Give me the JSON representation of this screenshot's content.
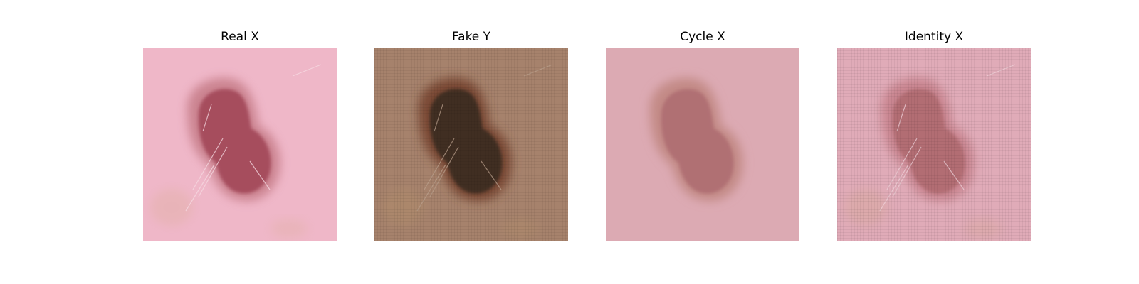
{
  "panels": [
    {
      "title": "Real X",
      "image": {
        "background": "#efb7c8",
        "lesion_outer": "#c57a86",
        "lesion_core": "#9a3a4c",
        "hair": "#f6d9e2",
        "texture": "smooth",
        "hair_strands": true,
        "tint_patches": true,
        "lesion_opacity": 0.85
      }
    },
    {
      "title": "Fake Y",
      "image": {
        "background": "#a6826c",
        "lesion_outer": "#7a4a35",
        "lesion_core": "#3f2d24",
        "hair": "#bba08c",
        "texture": "grid",
        "hair_strands": true,
        "tint_patches": true,
        "lesion_opacity": 1
      }
    },
    {
      "title": "Cycle X",
      "image": {
        "background": "#dcaab3",
        "lesion_outer": "#c38a86",
        "lesion_core": "#b06f73",
        "hair": "#e8c3c8",
        "texture": "smooth",
        "hair_strands": false,
        "tint_patches": false,
        "lesion_opacity": 1
      }
    },
    {
      "title": "Identity X",
      "image": {
        "background": "#e0abb8",
        "lesion_outer": "#c98590",
        "lesion_core": "#b26d73",
        "hair": "#efd0d8",
        "texture": "grid",
        "hair_strands": true,
        "tint_patches": true,
        "lesion_opacity": 1
      }
    }
  ]
}
